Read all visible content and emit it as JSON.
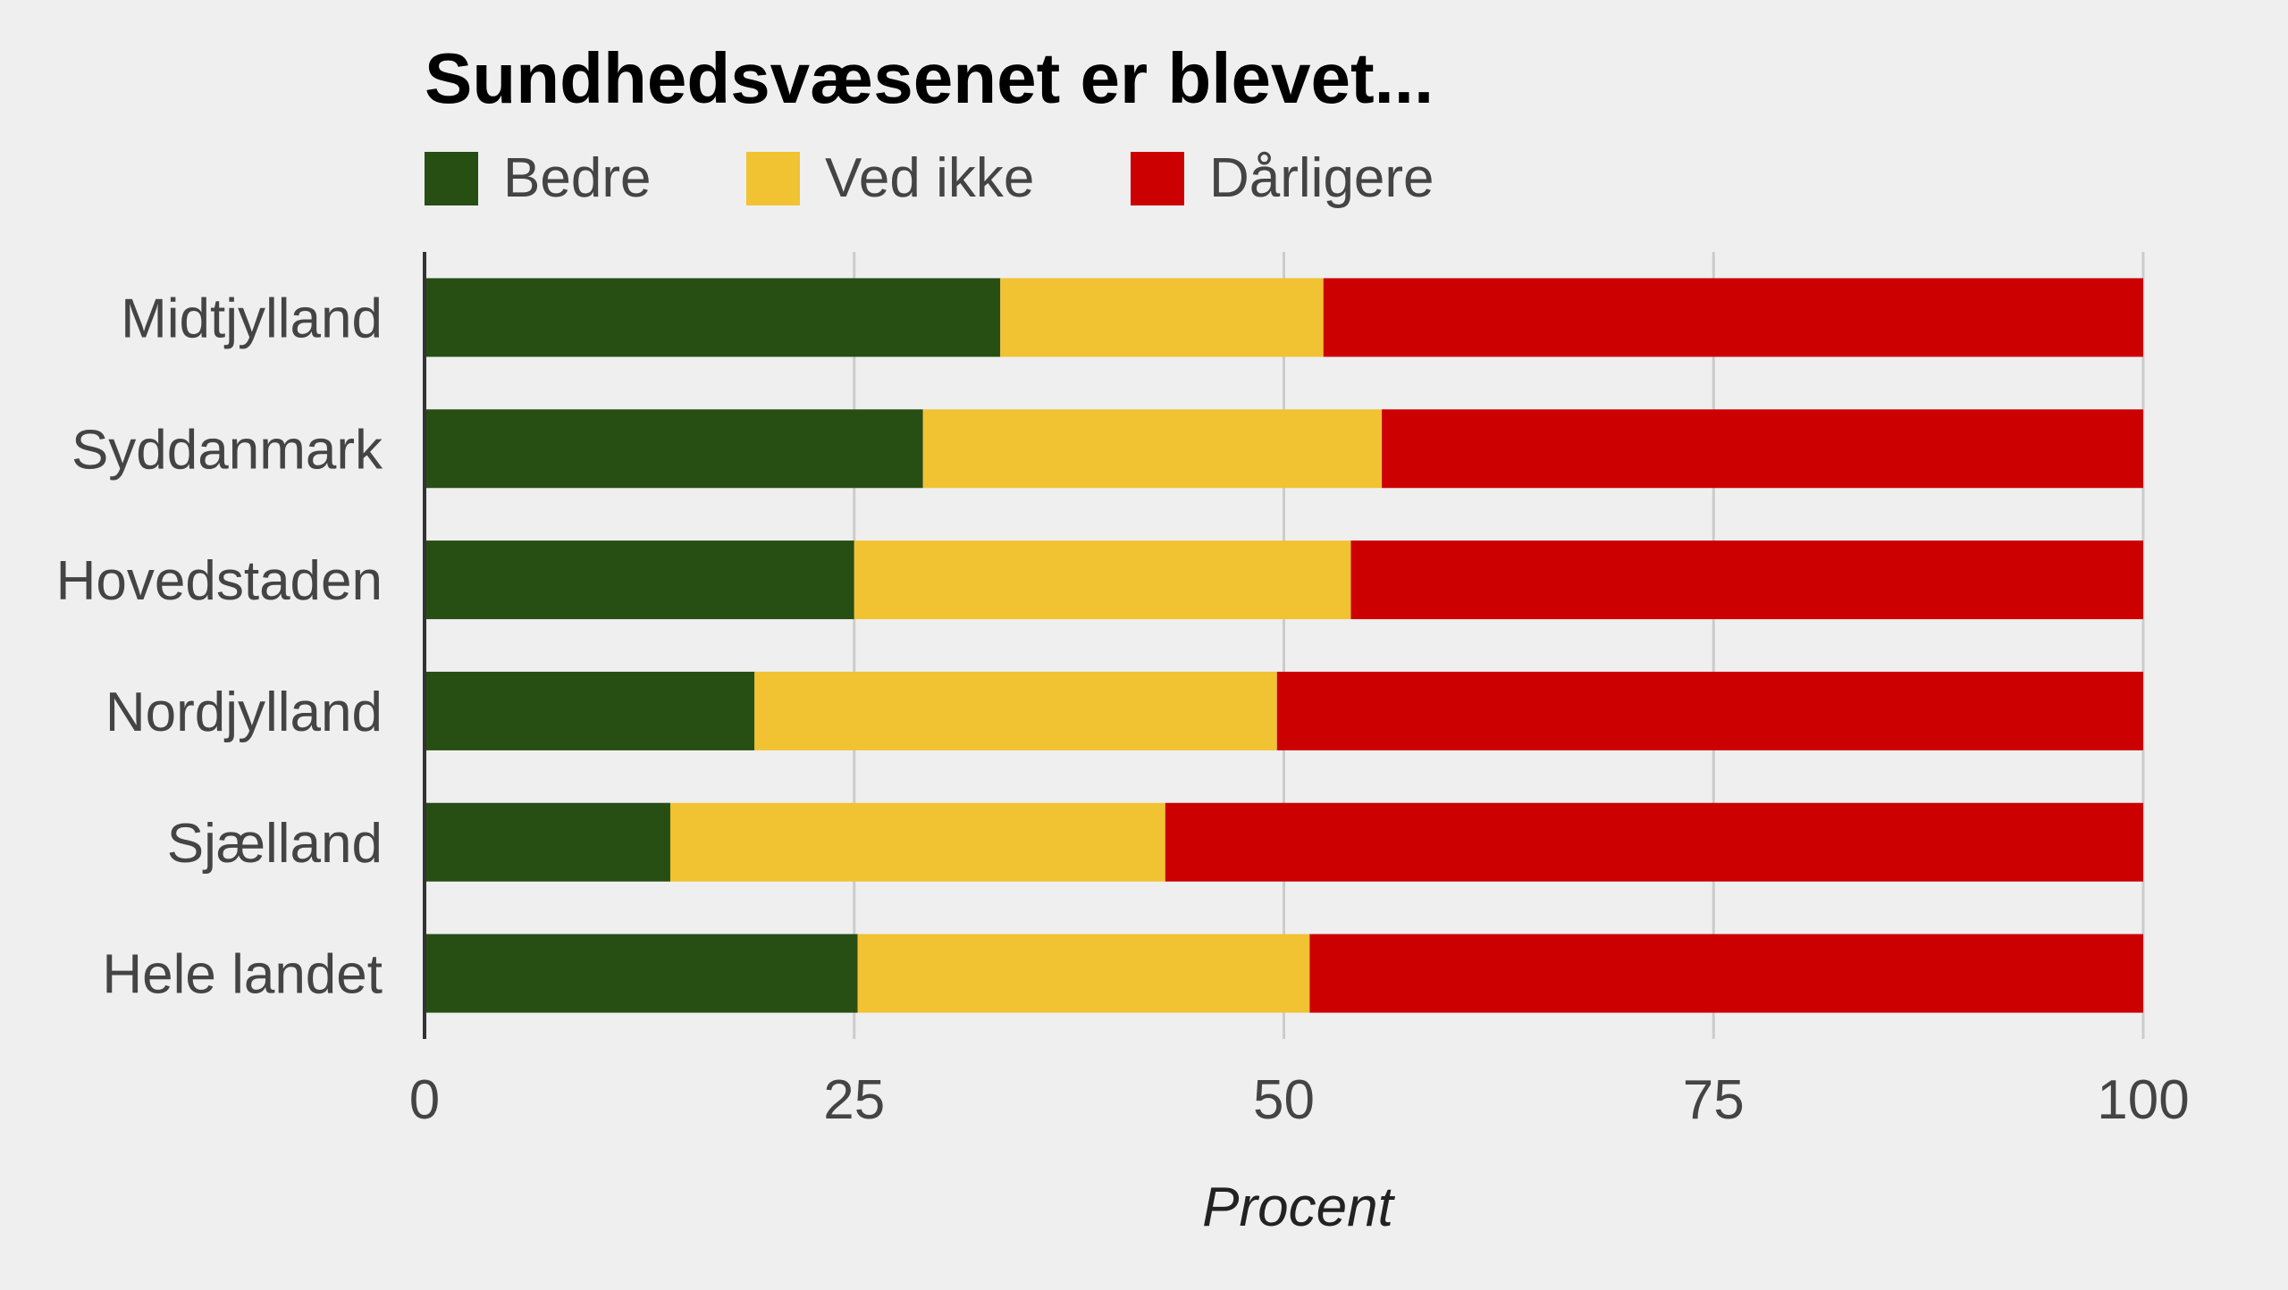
{
  "chart_data": {
    "type": "bar",
    "orientation": "horizontal",
    "stacked": true,
    "title": "Sundhedsvæsenet er blevet...",
    "xlabel": "Procent",
    "ylabel": "",
    "xlim": [
      0,
      100
    ],
    "xticks": [
      "0",
      "25",
      "50",
      "75",
      "100"
    ],
    "grid": true,
    "legend_position": "top",
    "categories": [
      "Midtjylland",
      "Syddanmark",
      "Hovedstaden",
      "Nordjylland",
      "Sjælland",
      "Hele landet"
    ],
    "series": [
      {
        "name": "Bedre",
        "color": "#274e13",
        "values": [
          33.5,
          29,
          25,
          19.2,
          14.3,
          25.2
        ]
      },
      {
        "name": "Ved ikke",
        "color": "#f1c232",
        "values": [
          18.8,
          26.7,
          28.9,
          30.4,
          28.8,
          26.3
        ]
      },
      {
        "name": "Dårligere",
        "color": "#cc0000",
        "values": [
          47.7,
          44.3,
          46.1,
          50.4,
          56.9,
          48.5
        ]
      }
    ]
  }
}
